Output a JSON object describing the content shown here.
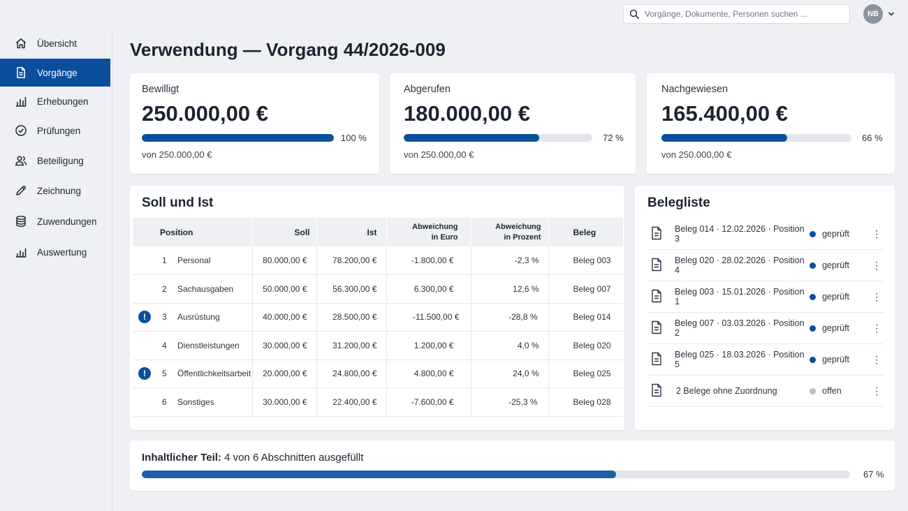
{
  "header": {
    "search_placeholder": "Vorgänge, Dokumente, Personen suchen ...",
    "user_initials": "NB"
  },
  "sidebar": {
    "items": [
      {
        "label": "Übersicht",
        "icon": "home-icon",
        "active": false
      },
      {
        "label": "Vorgänge",
        "icon": "document-icon",
        "active": true
      },
      {
        "label": "Erhebungen",
        "icon": "bar-chart-icon",
        "active": false
      },
      {
        "label": "Prüfungen",
        "icon": "check-circle-icon",
        "active": false
      },
      {
        "label": "Beteiligung",
        "icon": "users-icon",
        "active": false
      },
      {
        "label": "Zeichnung",
        "icon": "pen-icon",
        "active": false
      },
      {
        "label": "Zuwendungen",
        "icon": "coins-icon",
        "active": false
      },
      {
        "label": "Auswertung",
        "icon": "analytics-icon",
        "active": false
      }
    ]
  },
  "page": {
    "title": "Verwendung — Vorgang 44/2026-009"
  },
  "stats": [
    {
      "label": "Bewilligt",
      "value": "250.000,00 €",
      "percent_label": "100 %",
      "progress": 1.0,
      "of": "von 250.000,00 €"
    },
    {
      "label": "Abgerufen",
      "value": "180.000,00 €",
      "percent_label": "72 %",
      "progress": 0.72,
      "of": "von 250.000,00 €"
    },
    {
      "label": "Nachgewiesen",
      "value": "165.400,00 €",
      "percent_label": "66 %",
      "progress": 0.66,
      "of": "von 250.000,00 €"
    }
  ],
  "soll_ist": {
    "title": "Soll und Ist",
    "headers": {
      "position": "Position",
      "soll": "Soll",
      "ist": "Ist",
      "abw_euro_1": "Abweichung",
      "abw_euro_2": "in Euro",
      "abw_pct_1": "Abweichung",
      "abw_pct_2": "in Prozent",
      "beleg": "Beleg"
    },
    "rows": [
      {
        "nr": "1",
        "name": "Personal",
        "soll": "80.000,00 €",
        "ist": "78.200,00 €",
        "abw_euro": "-1.800,00 €",
        "abw_pct": "-2,3 %",
        "beleg": "Beleg 003",
        "warning": false
      },
      {
        "nr": "2",
        "name": "Sachausgaben",
        "soll": "50.000,00 €",
        "ist": "56.300,00 €",
        "abw_euro": "6.300,00 €",
        "abw_pct": "12,6 %",
        "beleg": "Beleg 007",
        "warning": false
      },
      {
        "nr": "3",
        "name": "Ausrüstung",
        "soll": "40.000,00 €",
        "ist": "28.500,00 €",
        "abw_euro": "-11.500,00 €",
        "abw_pct": "-28,8 %",
        "beleg": "Beleg 014",
        "warning": true
      },
      {
        "nr": "4",
        "name": "Dienstleistungen",
        "soll": "30.000,00 €",
        "ist": "31.200,00 €",
        "abw_euro": "1.200,00 €",
        "abw_pct": "4,0 %",
        "beleg": "Beleg 020",
        "warning": false
      },
      {
        "nr": "5",
        "name": "Öffentlichkeitsarbeit",
        "soll": "20.000,00 €",
        "ist": "24.800,00 €",
        "abw_euro": "4.800,00 €",
        "abw_pct": "24,0 %",
        "beleg": "Beleg 025",
        "warning": true
      },
      {
        "nr": "6",
        "name": "Sonstiges",
        "soll": "30.000,00 €",
        "ist": "22.400,00 €",
        "abw_euro": "-7.600,00 €",
        "abw_pct": "-25,3 %",
        "beleg": "Beleg 028",
        "warning": false
      }
    ]
  },
  "belegliste": {
    "title": "Belegliste",
    "items": [
      {
        "text": "Beleg 014 · 12.02.2026 · Position 3",
        "status": "geprüft",
        "status_color": "#0b4f9c"
      },
      {
        "text": "Beleg 020 · 28.02.2026 · Position 4",
        "status": "geprüft",
        "status_color": "#0b4f9c"
      },
      {
        "text": "Beleg 003 · 15.01.2026 · Position 1",
        "status": "geprüft",
        "status_color": "#0b4f9c"
      },
      {
        "text": "Beleg 007 · 03.03.2026 · Position 2",
        "status": "geprüft",
        "status_color": "#0b4f9c"
      },
      {
        "text": "Beleg 025 · 18.03.2026 · Position 5",
        "status": "geprüft",
        "status_color": "#0b4f9c"
      },
      {
        "text": "2 Belege ohne Zuordnung",
        "status": "offen",
        "status_color": "#b7bcc4"
      }
    ]
  },
  "progress": {
    "label": "Inhaltlicher Teil:",
    "text": "4 von 6 Abschnitten ausgefüllt",
    "percent_label": "67 %",
    "progress": 0.67
  },
  "colors": {
    "accent": "#0b4f9c",
    "background": "#eef0f4"
  }
}
